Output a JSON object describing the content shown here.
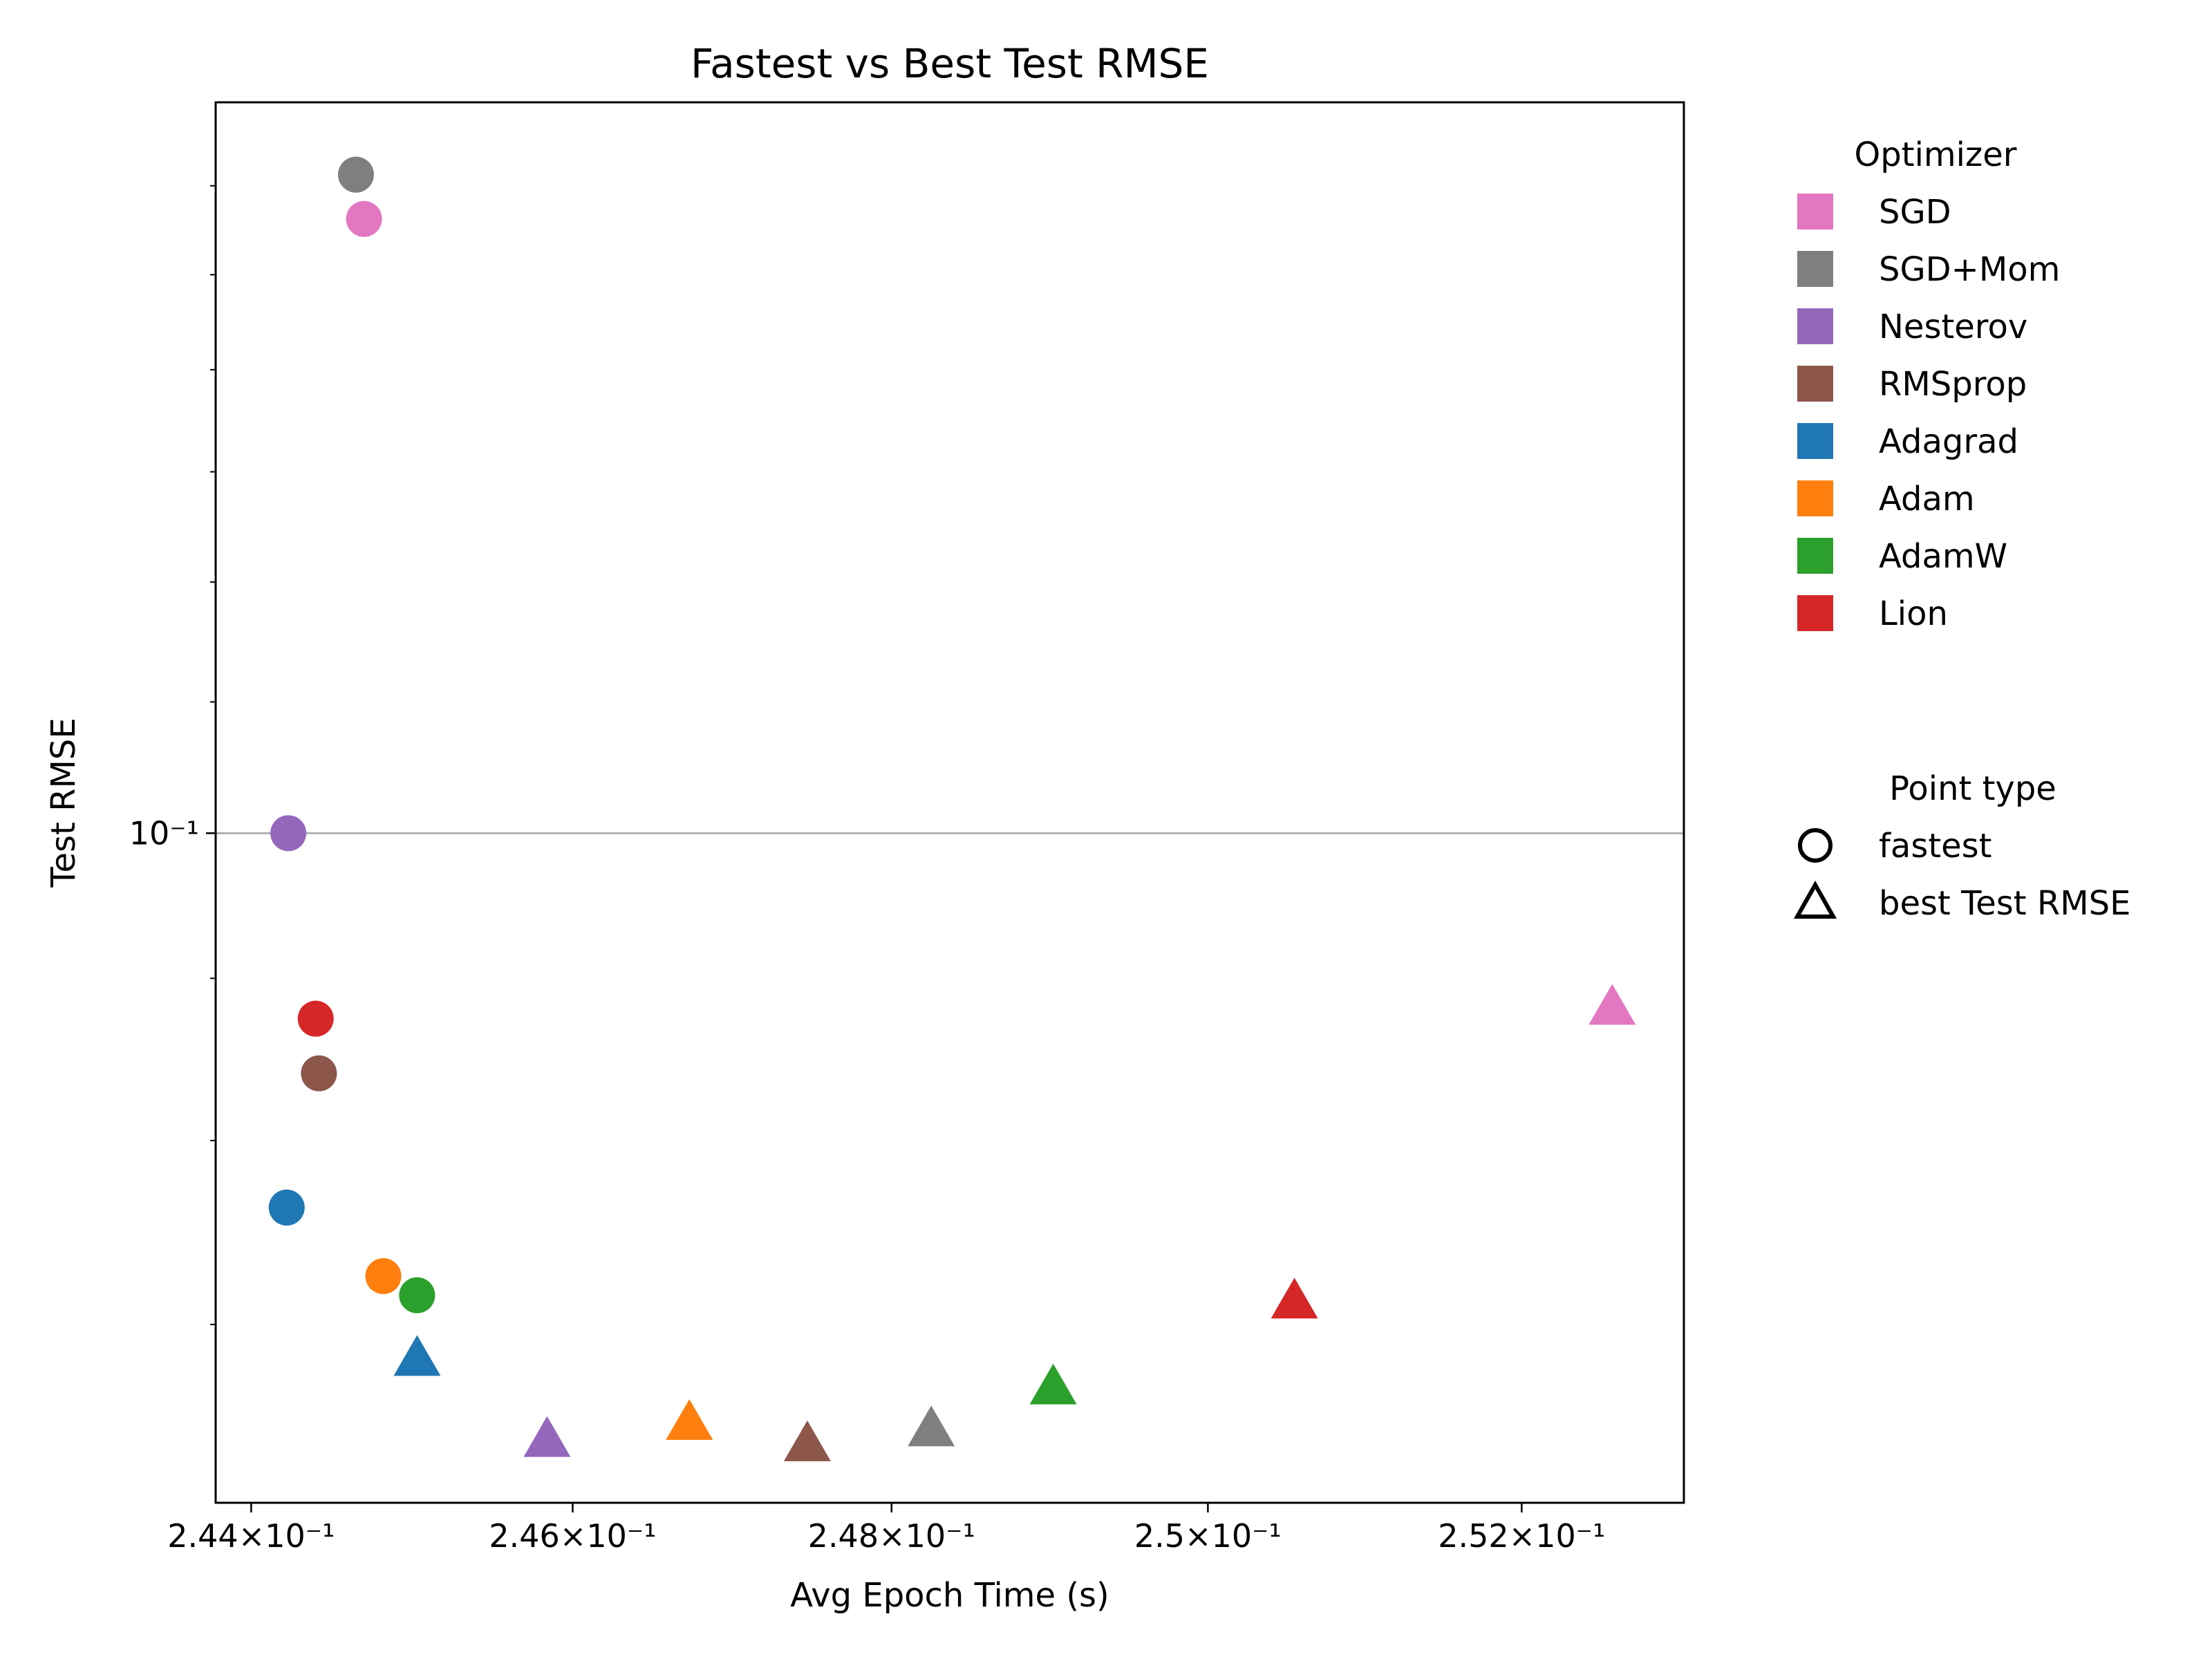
{
  "chart_data": {
    "type": "scatter",
    "title": "Fastest vs Best Test RMSE",
    "xlabel": "Avg Epoch Time (s)",
    "ylabel": "Test RMSE",
    "x_scale": "log",
    "y_scale": "log",
    "xlim": [
      0.24378,
      0.25304
    ],
    "ylim": [
      0.0615,
      0.17
    ],
    "x_ticks": [
      {
        "value": 0.244,
        "label": "2.44×10⁻¹"
      },
      {
        "value": 0.246,
        "label": "2.46×10⁻¹"
      },
      {
        "value": 0.248,
        "label": "2.48×10⁻¹"
      },
      {
        "value": 0.25,
        "label": "2.5×10⁻¹"
      },
      {
        "value": 0.252,
        "label": "2.52×10⁻¹"
      }
    ],
    "y_major_ticks": [
      {
        "value": 0.1,
        "label": "10⁻¹"
      }
    ],
    "y_minor_ticks": [
      0.07,
      0.08,
      0.09,
      0.2
    ],
    "y_minor_ticks_extra": [
      0.06
    ],
    "grid": "horizontal major only",
    "legend_placement": "right, outside plot",
    "optimizer_legend": {
      "title": "Optimizer",
      "entries": [
        {
          "name": "SGD",
          "color": "#e377c2"
        },
        {
          "name": "SGD+Mom",
          "color": "#7f7f7f"
        },
        {
          "name": "Nesterov",
          "color": "#9467bd"
        },
        {
          "name": "RMSprop",
          "color": "#8c564b"
        },
        {
          "name": "Adagrad",
          "color": "#1f77b4"
        },
        {
          "name": "Adam",
          "color": "#ff7f0e"
        },
        {
          "name": "AdamW",
          "color": "#2ca02c"
        },
        {
          "name": "Lion",
          "color": "#d62728"
        }
      ]
    },
    "point_type_legend": {
      "title": "Point type",
      "entries": [
        {
          "name": "fastest",
          "marker": "circle"
        },
        {
          "name": "best Test RMSE",
          "marker": "triangle"
        }
      ]
    },
    "series": [
      {
        "name": "SGD",
        "color": "#e377c2",
        "points": [
          {
            "type": "fastest",
            "x": 0.2447,
            "y": 0.1562
          },
          {
            "type": "best Test RMSE",
            "x": 0.25258,
            "y": 0.088
          }
        ]
      },
      {
        "name": "SGD+Mom",
        "color": "#7f7f7f",
        "points": [
          {
            "type": "fastest",
            "x": 0.24465,
            "y": 0.1613
          },
          {
            "type": "best Test RMSE",
            "x": 0.24825,
            "y": 0.0648
          }
        ]
      },
      {
        "name": "Nesterov",
        "color": "#9467bd",
        "points": [
          {
            "type": "fastest",
            "x": 0.24423,
            "y": 0.1
          },
          {
            "type": "best Test RMSE",
            "x": 0.24584,
            "y": 0.0643
          }
        ]
      },
      {
        "name": "RMSprop",
        "color": "#8c564b",
        "points": [
          {
            "type": "fastest",
            "x": 0.24442,
            "y": 0.084
          },
          {
            "type": "best Test RMSE",
            "x": 0.24747,
            "y": 0.0641
          }
        ]
      },
      {
        "name": "Adagrad",
        "color": "#1f77b4",
        "points": [
          {
            "type": "fastest",
            "x": 0.24422,
            "y": 0.0762
          },
          {
            "type": "best Test RMSE",
            "x": 0.24503,
            "y": 0.0682
          }
        ]
      },
      {
        "name": "Adam",
        "color": "#ff7f0e",
        "points": [
          {
            "type": "fastest",
            "x": 0.24482,
            "y": 0.0725
          },
          {
            "type": "best Test RMSE",
            "x": 0.24673,
            "y": 0.0651
          }
        ]
      },
      {
        "name": "AdamW",
        "color": "#2ca02c",
        "points": [
          {
            "type": "fastest",
            "x": 0.24503,
            "y": 0.0715
          },
          {
            "type": "best Test RMSE",
            "x": 0.24902,
            "y": 0.0668
          }
        ]
      },
      {
        "name": "Lion",
        "color": "#d62728",
        "points": [
          {
            "type": "fastest",
            "x": 0.2444,
            "y": 0.0874
          },
          {
            "type": "best Test RMSE",
            "x": 0.25055,
            "y": 0.0711
          }
        ]
      }
    ]
  }
}
